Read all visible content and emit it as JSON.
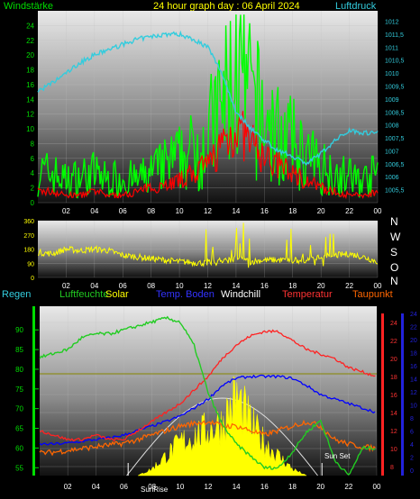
{
  "header": {
    "left_label": "Windstärke",
    "title": "24 hour graph day : 06 April 2024",
    "right_label": "Luftdruck"
  },
  "colors": {
    "wind": "#00ff00",
    "gust": "#00cc00",
    "wind_avg": "#ff0000",
    "pressure": "#33ccdd",
    "winddir": "#ffff00",
    "humidity": "#22cc22",
    "solar": "#ffff00",
    "soil_temp": "#0000ff",
    "windchill": "#ffffff",
    "temperature": "#ff2222",
    "dewpoint": "#ff6600",
    "ref_line": "#888800",
    "text_green": "#00dd00",
    "text_cyan": "#33ccdd",
    "text_yellow": "#ffff00",
    "text_blue": "#3333ff",
    "text_white": "#ffffff",
    "text_red": "#ff3333",
    "text_orange": "#ff6600",
    "text_darkblue": "#2222dd"
  },
  "panel3_labels": {
    "regen": "Regen",
    "luftfeuchte": "Luftfeuchte",
    "solar": "Solar",
    "temp_boden": "Temp. Boden",
    "windchill": "Windchill",
    "temperatur": "Temperatur",
    "taupunkt": "Taupunkt"
  },
  "sun_labels": {
    "sunrise": "SunRise",
    "sunset": "Sun Set"
  },
  "compass_labels": [
    "N",
    "W",
    "S",
    "O",
    "N"
  ],
  "chart_data": [
    {
      "type": "line",
      "name": "wind-pressure",
      "x_ticks": [
        "02",
        "04",
        "06",
        "08",
        "10",
        "12",
        "14",
        "16",
        "18",
        "20",
        "22",
        "00"
      ],
      "xlim": [
        0,
        24
      ],
      "y_left": {
        "ylim": [
          0,
          26
        ],
        "ticks": [
          "0",
          "2",
          "4",
          "6",
          "8",
          "10",
          "12",
          "14",
          "16",
          "18",
          "20",
          "22",
          "24"
        ]
      },
      "y_right": {
        "ylim": [
          1005,
          1012.4
        ],
        "ticks": [
          "1005,5",
          "1006",
          "1006,5",
          "1007",
          "1007,5",
          "1008",
          "1008,5",
          "1009",
          "1009,5",
          "1010",
          "1010,5",
          "1011",
          "1011,5",
          "1012"
        ]
      },
      "series": [
        {
          "axis": "left",
          "x": [
            0,
            1,
            2,
            3,
            4,
            5,
            6,
            7,
            8,
            9,
            10,
            11,
            12,
            13,
            14,
            15,
            16,
            17,
            18,
            19,
            20,
            21,
            22,
            23,
            24
          ],
          "values": [
            4,
            4,
            3,
            3.5,
            4,
            3,
            3.5,
            3,
            4,
            5,
            6,
            7,
            9,
            13,
            17,
            14,
            11,
            9,
            8,
            6,
            5,
            4,
            3.5,
            3,
            4
          ]
        },
        {
          "axis": "left",
          "x": [
            0,
            1,
            2,
            3,
            4,
            5,
            6,
            7,
            8,
            9,
            10,
            11,
            12,
            13,
            14,
            15,
            16,
            17,
            18,
            19,
            20,
            21,
            22,
            23,
            24
          ],
          "values": [
            1.5,
            1.5,
            1,
            1,
            1.5,
            1,
            1,
            1.5,
            2,
            2.5,
            3,
            4,
            5,
            8,
            10,
            8,
            6,
            5,
            4,
            3,
            2,
            1.5,
            1,
            1,
            1.5
          ]
        },
        {
          "axis": "right",
          "x": [
            0,
            1,
            2,
            3,
            4,
            5,
            6,
            7,
            8,
            9,
            10,
            11,
            12,
            13,
            14,
            15,
            16,
            17,
            18,
            19,
            20,
            21,
            22,
            23,
            24
          ],
          "values": [
            1009.3,
            1009.6,
            1010,
            1010.4,
            1010.7,
            1010.9,
            1011.1,
            1011.3,
            1011.4,
            1011.5,
            1011.5,
            1011.3,
            1011,
            1010,
            1008.5,
            1007.9,
            1007.4,
            1007,
            1006.8,
            1006.5,
            1006.9,
            1007.4,
            1007.8,
            1007.7,
            1007.7
          ]
        }
      ]
    },
    {
      "type": "line",
      "name": "wind-direction",
      "x_ticks": [
        "02",
        "04",
        "06",
        "08",
        "10",
        "12",
        "14",
        "16",
        "18",
        "20",
        "22",
        "00"
      ],
      "xlim": [
        0,
        24
      ],
      "y": {
        "ylim": [
          0,
          360
        ],
        "ticks": [
          "0",
          "90",
          "180",
          "270",
          "360"
        ]
      },
      "series": [
        {
          "x": [
            0,
            1,
            2,
            3,
            4,
            5,
            6,
            7,
            8,
            9,
            10,
            11,
            12,
            13,
            14,
            15,
            16,
            17,
            18,
            19,
            20,
            21,
            22,
            23,
            24
          ],
          "values": [
            160,
            150,
            180,
            170,
            180,
            170,
            140,
            130,
            120,
            110,
            100,
            95,
            90,
            100,
            120,
            100,
            110,
            110,
            110,
            110,
            130,
            140,
            150,
            130,
            100
          ]
        }
      ]
    },
    {
      "type": "line",
      "name": "temperature-humidity-solar",
      "x_ticks": [
        "02",
        "04",
        "06",
        "08",
        "10",
        "12",
        "14",
        "16",
        "18",
        "20",
        "22",
        "00"
      ],
      "xlim": [
        0,
        24
      ],
      "y_humidity": {
        "ylim": [
          53,
          96
        ],
        "ticks": [
          "55",
          "60",
          "65",
          "70",
          "75",
          "80",
          "85",
          "90"
        ]
      },
      "y_temp": {
        "ylim": [
          7,
          25.8
        ],
        "ticks": [
          "8",
          "10",
          "12",
          "14",
          "16",
          "18",
          "20",
          "22",
          "24"
        ]
      },
      "y_rain": {
        "ticks": [
          "0",
          "2",
          "4",
          "6",
          "8",
          "10",
          "12",
          "14",
          "16",
          "18",
          "20",
          "22",
          "24"
        ]
      },
      "series": [
        {
          "name": "Luftfeuchte",
          "axis": "humidity",
          "x": [
            0,
            1,
            2,
            3,
            4,
            5,
            6,
            7,
            8,
            9,
            10,
            11,
            12,
            13,
            14,
            15,
            16,
            17,
            18,
            19,
            20,
            21,
            22,
            23,
            24
          ],
          "values": [
            83,
            84,
            85,
            88,
            89,
            89,
            90,
            91,
            92,
            93,
            92,
            86,
            74,
            66,
            61,
            58,
            55,
            55,
            59,
            64,
            67,
            57,
            53,
            60,
            60
          ]
        },
        {
          "name": "Temperatur",
          "axis": "temp",
          "x": [
            0,
            1,
            2,
            3,
            4,
            5,
            6,
            7,
            8,
            9,
            10,
            11,
            12,
            13,
            14,
            15,
            16,
            17,
            18,
            19,
            20,
            21,
            22,
            23,
            24
          ],
          "values": [
            12,
            11.5,
            11,
            11,
            11.5,
            11,
            11,
            12,
            13,
            14,
            15,
            16.5,
            18,
            20,
            21.5,
            22.5,
            23,
            23,
            22,
            21,
            20.5,
            20,
            19,
            18.5,
            18
          ]
        },
        {
          "name": "Taupunkt",
          "axis": "temp",
          "x": [
            0,
            1,
            2,
            3,
            4,
            5,
            6,
            7,
            8,
            9,
            10,
            11,
            12,
            13,
            14,
            15,
            16,
            17,
            18,
            19,
            20,
            21,
            22,
            23,
            24
          ],
          "values": [
            9.5,
            9.6,
            9.8,
            10,
            10.2,
            10.4,
            10.6,
            11,
            11.5,
            12,
            12.5,
            12.8,
            13,
            12.5,
            12.5,
            12,
            11.5,
            12,
            12.5,
            13,
            12.5,
            11,
            10.5,
            10.2,
            10
          ]
        },
        {
          "name": "Temp. Boden",
          "axis": "temp",
          "x": [
            0,
            1,
            2,
            3,
            4,
            5,
            6,
            7,
            8,
            9,
            10,
            11,
            12,
            13,
            14,
            15,
            16,
            17,
            18,
            19,
            20,
            21,
            22,
            23,
            24
          ],
          "values": [
            10.5,
            10.5,
            10.6,
            10.8,
            11,
            11.2,
            11.5,
            12,
            12.5,
            13,
            13.6,
            14.5,
            15.5,
            17,
            17.8,
            18,
            18,
            18,
            17.8,
            17,
            16,
            15.5,
            15,
            14.5,
            14
          ]
        },
        {
          "name": "Solar",
          "axis": "solar",
          "x": [
            7,
            8,
            9,
            10,
            11,
            12,
            13,
            14,
            15,
            16,
            17,
            18,
            19
          ],
          "values": [
            0,
            5,
            15,
            25,
            30,
            35,
            40,
            60,
            40,
            25,
            15,
            5,
            0
          ]
        }
      ]
    }
  ]
}
